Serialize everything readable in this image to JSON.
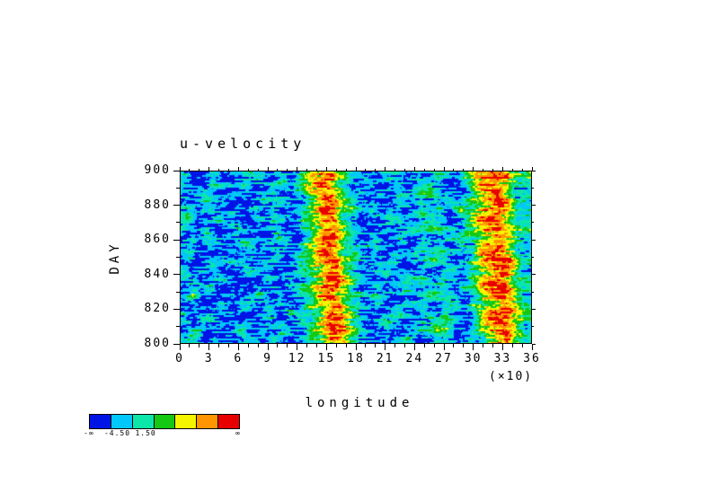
{
  "chart_data": {
    "type": "heatmap",
    "title": "u-velocity",
    "xlabel": "longitude",
    "x_scale_note": "(×10)",
    "ylabel": "DAY",
    "xlim": [
      0,
      36
    ],
    "ylim": [
      800,
      900
    ],
    "x_ticks": [
      "0",
      "3",
      "6",
      "9",
      "12",
      "15",
      "18",
      "21",
      "24",
      "27",
      "30",
      "33",
      "36"
    ],
    "y_ticks": [
      "900",
      "880",
      "860",
      "840",
      "820",
      "800"
    ],
    "grid_lines": "off",
    "colorbar": {
      "orientation": "horizontal",
      "colors": [
        "#0014e6",
        "#00c8fa",
        "#0ce6a8",
        "#14c814",
        "#f5f500",
        "#ff9600",
        "#e80000"
      ],
      "labels": [
        {
          "text": "-∞",
          "pos": 0.0
        },
        {
          "text": "-4.50",
          "pos": 0.19
        },
        {
          "text": "1.50",
          "pos": 0.38
        },
        {
          "text": "∞",
          "pos": 1.0
        }
      ]
    },
    "grid": {
      "cols": 36,
      "rows": 20,
      "encoding": "each char = color index 0-6 into colorbar.colors; row 0 = day 900 (top), last row = day 800 (bottom); columns span longitude 0-36 (x10 deg)",
      "rows_data": [
        "120010112101024563210121021210345653",
        "010021021012135642101011012101256542",
        "201100110120224553110102123210145631",
        "110211001211013564201012010121334652",
        "021100112010124653312010121203245642",
        "130021001121034562101121012101356531",
        "210100210110123554210101223210245643",
        "101201101021014663201012110123334552",
        "020110120112034553112101021202145632",
        "121001011020125642201011212310256541",
        "010212100110234563210120123201345652",
        "201100121001123552101211010121234641",
        "110021010212014664210101221210345532",
        "021200101101234553101012112103256642",
        "130101012010125643212101023210145631",
        "011020210121034562201011210121334542",
        "210111001202123554110121021201245653",
        "102100110110214653201210112310256532",
        "021011201021034564210101223201345641",
        "120100110210123553111012012102134632"
      ]
    }
  }
}
